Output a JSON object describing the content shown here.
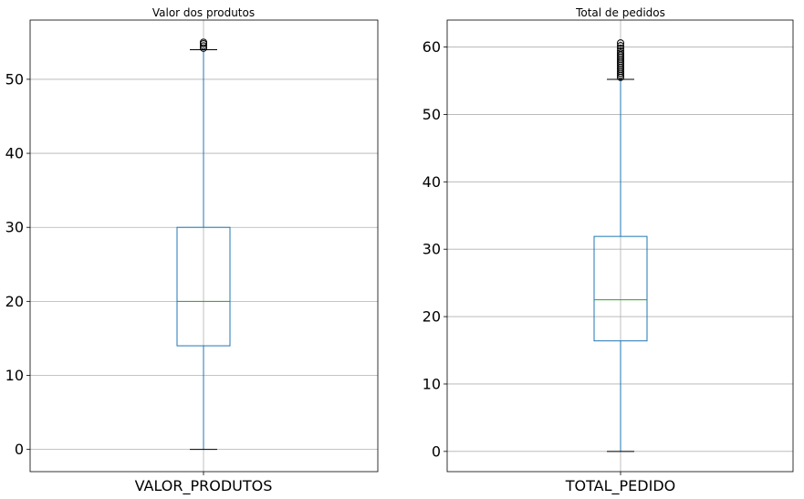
{
  "chart_data": [
    {
      "type": "box",
      "title": "Valor dos produtos",
      "categories": [
        "VALOR_PRODUTOS"
      ],
      "ylim": [
        -3,
        58
      ],
      "yticks": [
        0,
        10,
        20,
        30,
        40,
        50
      ],
      "grid": true,
      "box": {
        "min": 0,
        "q1": 14,
        "median": 20,
        "q3": 30,
        "max": 54
      },
      "outliers": [
        54.2,
        54.5,
        54.8,
        55.0
      ],
      "colors": {
        "box": "#1f77b4",
        "median": "#2ca02c",
        "grid": "#b0b0b0"
      }
    },
    {
      "type": "box",
      "title": "Total de pedidos",
      "categories": [
        "TOTAL_PEDIDO"
      ],
      "ylim": [
        -3,
        64
      ],
      "yticks": [
        0,
        10,
        20,
        30,
        40,
        50,
        60
      ],
      "grid": true,
      "box": {
        "min": 0,
        "q1": 16.4,
        "median": 22.5,
        "q3": 31.9,
        "max": 55.2
      },
      "outliers": [
        55.5,
        55.8,
        56.1,
        56.4,
        56.7,
        57.0,
        57.3,
        57.6,
        57.9,
        58.2,
        58.5,
        58.8,
        59.1,
        59.4,
        59.8,
        60.2,
        60.6
      ],
      "colors": {
        "box": "#1f77b4",
        "median": "#2ca02c",
        "grid": "#b0b0b0"
      }
    }
  ]
}
